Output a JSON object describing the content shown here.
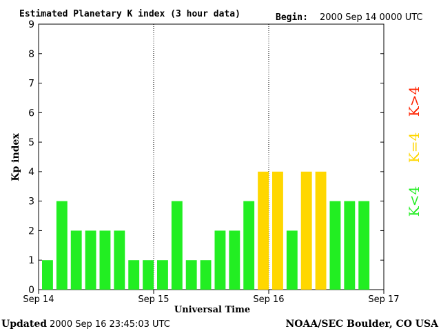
{
  "header": {
    "title": "Estimated Planetary K index (3 hour data)",
    "begin_label": "Begin:",
    "begin_value": "2000 Sep 14 0000 UTC"
  },
  "footer": {
    "updated_label": "Updated",
    "updated_value": "2000 Sep 16 23:45:03 UTC",
    "source": "NOAA/SEC Boulder, CO USA"
  },
  "legend": {
    "high": "K>4",
    "equal": "K=4",
    "low": "K<4"
  },
  "colors": {
    "low": "#22ee22",
    "equal": "#ffd700",
    "high": "#ff2200",
    "axis": "#000000",
    "grid": "#000000"
  },
  "chart_data": {
    "type": "bar",
    "title": "Estimated Planetary K index (3 hour data)",
    "xlabel": "Universal Time",
    "ylabel": "Kp index",
    "ylim": [
      0,
      9
    ],
    "y_ticks": [
      "0",
      "1",
      "2",
      "3",
      "4",
      "5",
      "6",
      "7",
      "8",
      "9"
    ],
    "x_ticks": [
      "Sep 14",
      "Sep 15",
      "Sep 16",
      "Sep 17"
    ],
    "day_dividers": [
      "Sep 15",
      "Sep 16"
    ],
    "values": [
      1,
      3,
      2,
      2,
      2,
      2,
      1,
      1,
      1,
      3,
      1,
      1,
      2,
      2,
      3,
      4,
      4,
      2,
      4,
      4,
      3,
      3,
      3
    ],
    "grid": false,
    "legend_position": "right"
  }
}
